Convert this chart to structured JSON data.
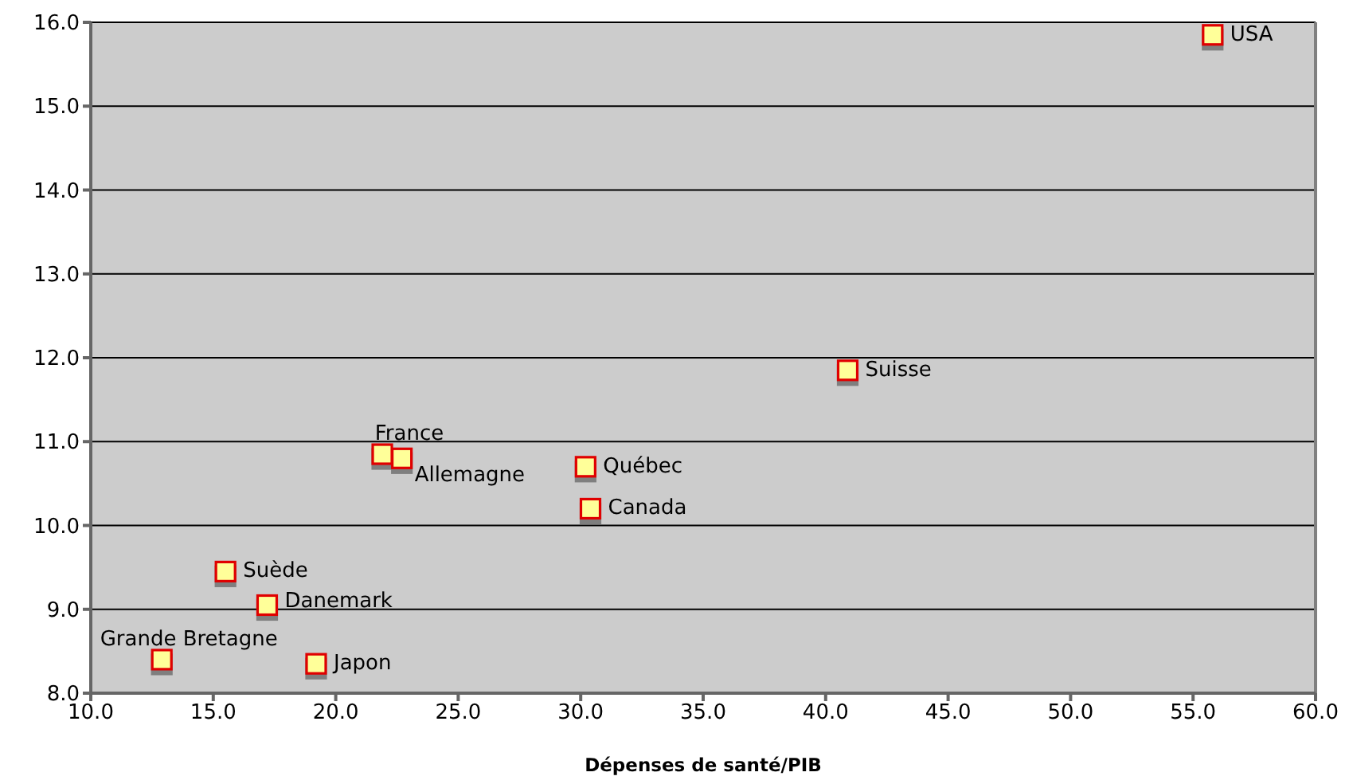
{
  "chart_data": {
    "type": "scatter",
    "xlabel": "Dépenses de santé/PIB",
    "x": [
      12.9,
      15.5,
      17.2,
      19.2,
      21.9,
      22.7,
      30.2,
      30.4,
      40.9,
      55.8
    ],
    "values": [
      8.4,
      9.45,
      9.05,
      8.35,
      10.85,
      10.8,
      10.7,
      10.2,
      11.85,
      15.85
    ],
    "color": "#ffff99",
    "marker": "square",
    "grid": "y",
    "xlim": [
      10,
      60
    ],
    "xticks": [
      {
        "value": 10,
        "label": "10.0"
      },
      {
        "value": 15,
        "label": "15.0"
      },
      {
        "value": 20,
        "label": "20.0"
      },
      {
        "value": 25,
        "label": "25.0"
      },
      {
        "value": 30,
        "label": "30.0"
      },
      {
        "value": 35,
        "label": "35.0"
      },
      {
        "value": 40,
        "label": "40.0"
      },
      {
        "value": 45,
        "label": "45.0"
      },
      {
        "value": 50,
        "label": "50.0"
      },
      {
        "value": 55,
        "label": "55.0"
      },
      {
        "value": 60,
        "label": "60.0"
      }
    ],
    "ylim": [
      8,
      16
    ],
    "yticks": [
      {
        "value": 8,
        "label": "8.0"
      },
      {
        "value": 9,
        "label": "9.0"
      },
      {
        "value": 10,
        "label": "10.0"
      },
      {
        "value": 11,
        "label": "11.0"
      },
      {
        "value": 12,
        "label": "12.0"
      },
      {
        "value": 13,
        "label": "13.0"
      },
      {
        "value": 14,
        "label": "14.0"
      },
      {
        "value": 15,
        "label": "15.0"
      },
      {
        "value": 16,
        "label": "16.0"
      }
    ],
    "annotations": [
      {
        "text": "Grande Bretagne",
        "x": 12.9,
        "y": 8.4
      },
      {
        "text": "Suède",
        "x": 15.5,
        "y": 9.45
      },
      {
        "text": "Danemark",
        "x": 17.2,
        "y": 9.05
      },
      {
        "text": "Japon",
        "x": 19.2,
        "y": 8.35
      },
      {
        "text": "France",
        "x": 21.9,
        "y": 10.85
      },
      {
        "text": "Allemagne",
        "x": 22.7,
        "y": 10.8
      },
      {
        "text": "Québec",
        "x": 30.2,
        "y": 10.7
      },
      {
        "text": "Canada",
        "x": 30.4,
        "y": 10.2
      },
      {
        "text": "Suisse",
        "x": 40.9,
        "y": 11.85
      },
      {
        "text": "USA",
        "x": 55.8,
        "y": 15.85
      }
    ]
  }
}
